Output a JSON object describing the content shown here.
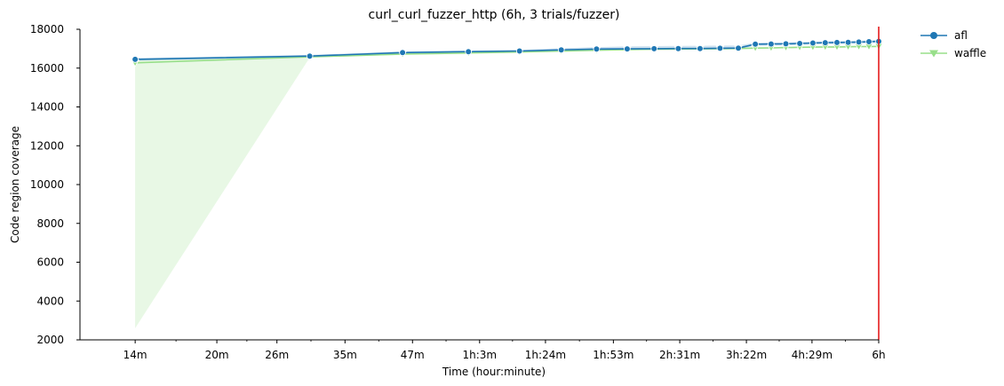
{
  "chart_data": {
    "type": "line",
    "title": "curl_curl_fuzzer_http (6h, 3 trials/fuzzer)",
    "xlabel": "Time (hour:minute)",
    "ylabel": "Code region coverage",
    "x_scale": "log",
    "x_ticks": [
      {
        "label": "14m",
        "minutes": 14
      },
      {
        "label": "20m",
        "minutes": 20
      },
      {
        "label": "26m",
        "minutes": 26
      },
      {
        "label": "35m",
        "minutes": 35
      },
      {
        "label": "47m",
        "minutes": 47
      },
      {
        "label": "1h:3m",
        "minutes": 63
      },
      {
        "label": "1h:24m",
        "minutes": 84
      },
      {
        "label": "1h:53m",
        "minutes": 113
      },
      {
        "label": "2h:31m",
        "minutes": 151
      },
      {
        "label": "3h:22m",
        "minutes": 202
      },
      {
        "label": "4h:29m",
        "minutes": 269
      },
      {
        "label": "6h",
        "minutes": 360
      }
    ],
    "xlim_minutes": [
      10.5,
      360
    ],
    "ylim": [
      2000,
      18000
    ],
    "y_ticks": [
      2000,
      4000,
      6000,
      8000,
      10000,
      12000,
      14000,
      16000,
      18000
    ],
    "grid": false,
    "legend": "outside-top-right",
    "marker_line_minutes": 360,
    "series": [
      {
        "name": "afl",
        "color": "#1f77b4",
        "marker": "circle",
        "x_minutes": [
          14,
          30,
          45,
          60,
          75,
          90,
          105,
          120,
          135,
          150,
          165,
          180,
          195,
          210,
          225,
          240,
          255,
          270,
          285,
          300,
          315,
          330,
          345,
          360
        ],
        "y": [
          16450,
          16620,
          16800,
          16850,
          16880,
          16940,
          16980,
          16990,
          17000,
          17010,
          17010,
          17020,
          17030,
          17230,
          17240,
          17250,
          17270,
          17290,
          17310,
          17320,
          17330,
          17340,
          17360,
          17380
        ],
        "band_low": [
          16380,
          16570,
          16740,
          16790,
          16830,
          16880,
          16930,
          16940,
          16950,
          16960,
          16960,
          16970,
          16980,
          17150,
          17160,
          17170,
          17190,
          17210,
          17230,
          17240,
          17250,
          17260,
          17280,
          17300
        ],
        "band_high": [
          16520,
          16680,
          16860,
          16900,
          16940,
          17020,
          17080,
          17120,
          17130,
          17140,
          17150,
          17160,
          17170,
          17300,
          17310,
          17320,
          17340,
          17360,
          17380,
          17390,
          17400,
          17410,
          17430,
          17450
        ]
      },
      {
        "name": "waffle",
        "color": "#98df8a",
        "marker": "triangle-down",
        "x_minutes": [
          14,
          30,
          45,
          60,
          75,
          90,
          105,
          120,
          135,
          150,
          165,
          180,
          195,
          210,
          225,
          240,
          255,
          270,
          285,
          300,
          315,
          330,
          345,
          360
        ],
        "y": [
          16270,
          16580,
          16720,
          16780,
          16830,
          16880,
          16920,
          16950,
          16970,
          16980,
          16990,
          17000,
          17010,
          17030,
          17040,
          17060,
          17070,
          17080,
          17090,
          17090,
          17100,
          17110,
          17110,
          17120
        ],
        "band_low": [
          2600,
          16540,
          16680,
          16740,
          16790,
          16840,
          16880,
          16910,
          16930,
          16940,
          16950,
          16960,
          16970,
          16990,
          17000,
          17020,
          17030,
          17040,
          17050,
          17050,
          17060,
          17070,
          17070,
          17080
        ],
        "band_high": [
          16450,
          16620,
          16760,
          16820,
          16870,
          16920,
          16960,
          16990,
          17010,
          17020,
          17030,
          17040,
          17050,
          17070,
          17080,
          17100,
          17110,
          17120,
          17130,
          17130,
          17140,
          17150,
          17150,
          17160
        ]
      }
    ]
  }
}
